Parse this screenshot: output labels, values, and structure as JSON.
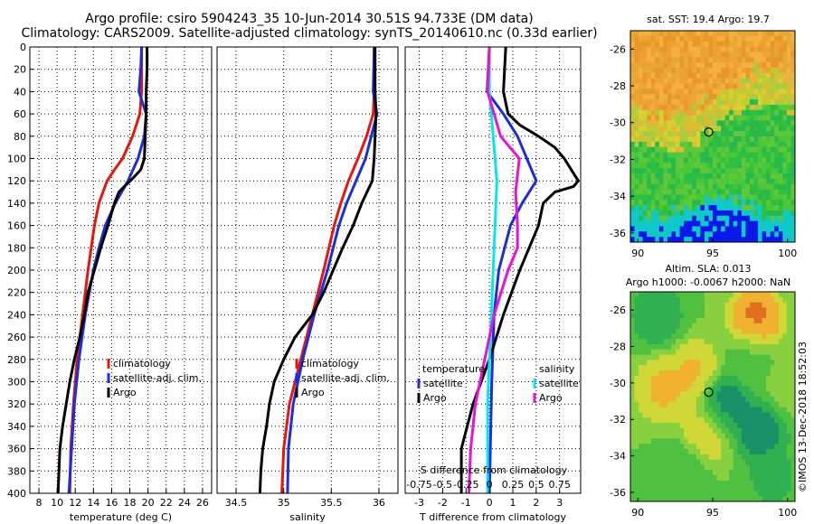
{
  "title": {
    "line1": "Argo profile: csiro 5904243_35 10-Jun-2014 30.51S 94.733E (DM data)",
    "line2": "Climatology: CARS2009. Satellite-adjusted climatology: synTS_20140610.nc (0.33d earlier)"
  },
  "colors": {
    "climatology": "#e8170c",
    "satellite": "#1a2ee0",
    "argo": "#000000",
    "sat_salinity": "#00e8f0",
    "argo_salinity": "#ee10d4"
  },
  "chart_data": [
    {
      "type": "line",
      "name": "temperature",
      "xlabel": "temperature (deg C)",
      "ylabel": "",
      "xlim": [
        7,
        27
      ],
      "ylim": [
        400,
        0
      ],
      "xticks": [
        "8",
        "10",
        "12",
        "14",
        "16",
        "18",
        "20",
        "22",
        "24",
        "26"
      ],
      "yticks": [
        "0",
        "20",
        "40",
        "60",
        "80",
        "100",
        "120",
        "140",
        "160",
        "180",
        "200",
        "220",
        "240",
        "260",
        "280",
        "300",
        "320",
        "340",
        "360",
        "380",
        "400"
      ],
      "legend": [
        "climatology",
        "satellite-adj. clim.",
        "Argo"
      ],
      "series": [
        {
          "name": "climatology",
          "depth": [
            0,
            20,
            40,
            60,
            80,
            100,
            110,
            120,
            140,
            160,
            200,
            240,
            280,
            320,
            360,
            400
          ],
          "values": [
            19.3,
            19.3,
            19.3,
            19.1,
            18.3,
            17.2,
            16.3,
            15.5,
            14.6,
            14.1,
            13.4,
            12.8,
            12.2,
            11.8,
            11.5,
            11.4
          ]
        },
        {
          "name": "satellite-adj. clim.",
          "depth": [
            0,
            20,
            40,
            60,
            80,
            100,
            120,
            140,
            160,
            180,
            200,
            240,
            280,
            320,
            360,
            400
          ],
          "values": [
            19.3,
            19.2,
            19.0,
            19.8,
            19.6,
            18.9,
            17.8,
            16.4,
            15.3,
            14.6,
            14.0,
            13.1,
            12.4,
            11.9,
            11.6,
            11.3
          ]
        },
        {
          "name": "Argo",
          "depth": [
            0,
            20,
            40,
            60,
            80,
            100,
            110,
            118,
            122,
            125,
            130,
            140,
            160,
            180,
            200,
            220,
            240,
            260,
            280,
            300,
            320,
            340,
            360,
            380,
            400
          ],
          "values": [
            19.9,
            19.9,
            19.8,
            19.8,
            19.7,
            19.6,
            19.2,
            18.3,
            17.8,
            17.4,
            16.8,
            16.3,
            15.6,
            14.8,
            14.1,
            13.4,
            13.0,
            12.5,
            11.9,
            11.4,
            11.0,
            10.6,
            10.3,
            10.2,
            10.1
          ]
        }
      ]
    },
    {
      "type": "line",
      "name": "salinity",
      "xlabel": "salinity",
      "xlim": [
        34.3,
        36.2
      ],
      "ylim": [
        400,
        0
      ],
      "xticks": [
        "34.5",
        "35",
        "35.5",
        "36"
      ],
      "legend": [
        "climatology",
        "satellite-adj. clim.",
        "Argo"
      ],
      "series": [
        {
          "name": "climatology",
          "depth": [
            0,
            40,
            60,
            80,
            100,
            120,
            140,
            160,
            200,
            240,
            280,
            320,
            360,
            400
          ],
          "values": [
            35.95,
            35.95,
            35.94,
            35.87,
            35.78,
            35.68,
            35.6,
            35.53,
            35.42,
            35.3,
            35.18,
            35.06,
            35.0,
            34.98
          ]
        },
        {
          "name": "satellite-adj. clim.",
          "depth": [
            0,
            40,
            60,
            80,
            100,
            120,
            140,
            160,
            200,
            240,
            280,
            320,
            360,
            400
          ],
          "values": [
            35.95,
            35.94,
            35.98,
            35.92,
            35.86,
            35.76,
            35.66,
            35.58,
            35.46,
            35.32,
            35.2,
            35.1,
            35.05,
            35.04
          ]
        },
        {
          "name": "Argo",
          "depth": [
            0,
            40,
            60,
            80,
            100,
            120,
            140,
            160,
            180,
            200,
            220,
            240,
            260,
            280,
            300,
            320,
            340,
            360,
            380,
            400
          ],
          "values": [
            35.96,
            35.96,
            35.97,
            35.96,
            35.95,
            35.93,
            35.82,
            35.73,
            35.62,
            35.52,
            35.42,
            35.3,
            35.12,
            35.0,
            34.9,
            34.85,
            34.82,
            34.78,
            34.76,
            34.75
          ]
        }
      ]
    },
    {
      "type": "line",
      "name": "difference",
      "xlabel": "T difference from climatology",
      "xlim": [
        -3.6,
        3.9
      ],
      "ylim": [
        400,
        0
      ],
      "xticks": [
        "-3",
        "-2",
        "-1",
        "0",
        "1",
        "2",
        "3"
      ],
      "top_axis_label": "S difference from climatology",
      "top_xticks": [
        "-0.75",
        "-0.5",
        "-0.25",
        "0",
        "0.25",
        "0.5",
        "0.75"
      ],
      "legend_temperature": [
        "temperature",
        "satellite",
        "Argo"
      ],
      "legend_salinity": [
        "salinity",
        "satellite",
        "Argo"
      ],
      "series": [
        {
          "name": "temperature satellite",
          "depth": [
            0,
            40,
            60,
            80,
            100,
            120,
            140,
            160,
            200,
            240,
            300,
            400
          ],
          "values": [
            0.0,
            -0.1,
            0.6,
            1.2,
            1.6,
            2.0,
            1.4,
            0.9,
            0.4,
            0.2,
            0.1,
            0.0
          ]
        },
        {
          "name": "temperature Argo",
          "depth": [
            0,
            40,
            50,
            60,
            70,
            80,
            90,
            100,
            110,
            120,
            125,
            130,
            140,
            160,
            180,
            200,
            240,
            280,
            320,
            360,
            400
          ],
          "values": [
            0.7,
            0.6,
            0.7,
            0.8,
            1.3,
            2.1,
            2.8,
            3.2,
            3.5,
            3.8,
            3.6,
            2.8,
            2.3,
            2.1,
            1.7,
            1.3,
            0.6,
            0.0,
            -0.7,
            -1.2,
            -1.2
          ]
        },
        {
          "name": "salinity satellite",
          "depth": [
            0,
            40,
            80,
            120,
            160,
            200,
            240,
            280,
            320,
            360,
            400
          ],
          "values": [
            0.0,
            0.0,
            0.04,
            0.08,
            0.06,
            0.04,
            0.02,
            0.0,
            -0.02,
            -0.02,
            -0.02
          ]
        },
        {
          "name": "salinity Argo",
          "depth": [
            0,
            40,
            80,
            100,
            130,
            160,
            180,
            200,
            240,
            280,
            320,
            360,
            400
          ],
          "values": [
            0.0,
            -0.02,
            0.12,
            0.32,
            0.28,
            0.3,
            0.3,
            0.2,
            0.05,
            -0.05,
            -0.15,
            -0.2,
            -0.22
          ]
        }
      ]
    },
    {
      "type": "heatmap",
      "name": "sst_map",
      "title": "sat. SST: 19.4 Argo: 19.7",
      "xticks": [
        "90",
        "95",
        "100"
      ],
      "yticks": [
        "-26",
        "-28",
        "-30",
        "-32",
        "-34",
        "-36"
      ],
      "xlim": [
        89.5,
        100.5
      ],
      "ylim": [
        -36.5,
        -25
      ]
    },
    {
      "type": "heatmap",
      "name": "sla_map",
      "title": "Altim. SLA: 0.013",
      "subtitle": "Argo h1000: -0.0067 h2000: NaN",
      "xticks": [
        "90",
        "95",
        "100"
      ],
      "yticks": [
        "-26",
        "-28",
        "-30",
        "-32",
        "-34",
        "-36"
      ],
      "xlim": [
        89.5,
        100.5
      ],
      "ylim": [
        -36.5,
        -25
      ]
    }
  ],
  "credit": "©IMOS 13-Dec-2018 18:52:03"
}
